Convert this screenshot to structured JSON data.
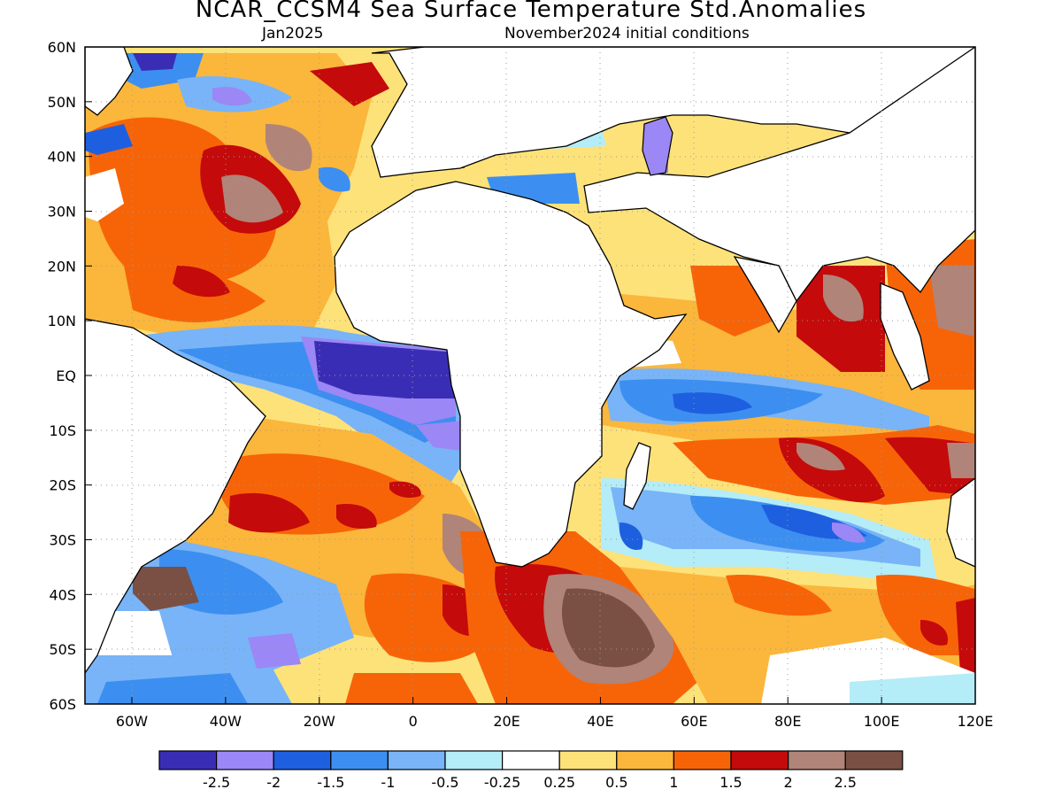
{
  "title": "NCAR_CCSM4 Sea Surface Temperature Std.Anomalies",
  "valid_month": "Jan2025",
  "init_conditions": "November2024 initial conditions",
  "lat_labels": [
    "60N",
    "50N",
    "40N",
    "30N",
    "20N",
    "10N",
    "EQ",
    "10S",
    "20S",
    "30S",
    "40S",
    "50S",
    "60S"
  ],
  "lon_labels": [
    "60W",
    "40W",
    "20W",
    "0",
    "20E",
    "40E",
    "60E",
    "80E",
    "100E",
    "120E"
  ],
  "colorbar": {
    "colors": [
      "#3a2db5",
      "#9b87f5",
      "#1e5fe0",
      "#3c8ff0",
      "#78b4f7",
      "#b4ecf8",
      "#ffffff",
      "#fde27a",
      "#fbb63c",
      "#f76408",
      "#c40a0a",
      "#b08478",
      "#7a5044"
    ],
    "labels": [
      "-2.5",
      "-2",
      "-1.5",
      "-1",
      "-0.5",
      "-0.25",
      "0.25",
      "0.5",
      "1",
      "1.5",
      "2",
      "2.5"
    ]
  },
  "map_extent": {
    "lon_min": -70,
    "lon_max": 120,
    "lat_min": -60,
    "lat_max": 60
  }
}
